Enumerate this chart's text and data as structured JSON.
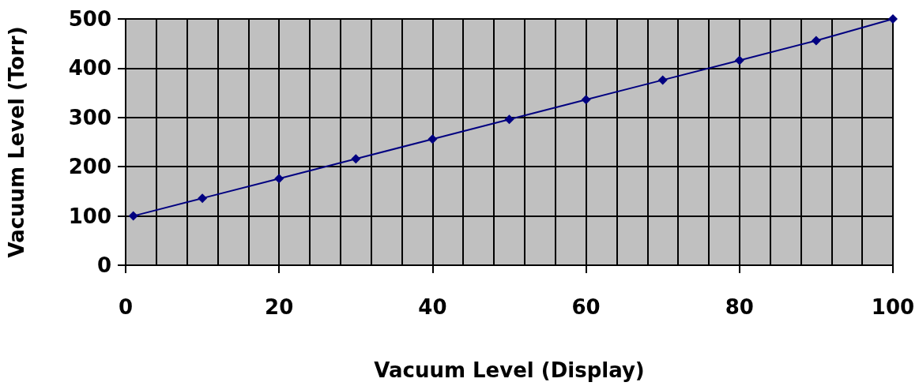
{
  "chart_data": {
    "type": "line",
    "xlabel": "Vacuum Level (Display)",
    "ylabel": "Vacuum Level (Torr)",
    "x": [
      1,
      10,
      20,
      30,
      40,
      50,
      60,
      70,
      80,
      90,
      100
    ],
    "series": [
      {
        "color": "#000080",
        "values": [
          100,
          136,
          176,
          216,
          256,
          296,
          336,
          376,
          416,
          456,
          500
        ]
      }
    ],
    "xlim": [
      0,
      100
    ],
    "xticks": [
      0,
      {
        "value": 4,
        "label": null
      },
      {
        "value": 8,
        "label": null
      },
      {
        "value": 12,
        "label": null
      },
      {
        "value": 16,
        "label": null
      },
      20,
      {
        "value": 24,
        "label": null
      },
      {
        "value": 28,
        "label": null
      },
      {
        "value": 32,
        "label": null
      },
      {
        "value": 36,
        "label": null
      },
      40,
      {
        "value": 44,
        "label": null
      },
      {
        "value": 48,
        "label": null
      },
      {
        "value": 52,
        "label": null
      },
      {
        "value": 56,
        "label": null
      },
      60,
      {
        "value": 64,
        "label": null
      },
      {
        "value": 68,
        "label": null
      },
      {
        "value": 72,
        "label": null
      },
      {
        "value": 76,
        "label": null
      },
      80,
      {
        "value": 84,
        "label": null
      },
      {
        "value": 88,
        "label": null
      },
      {
        "value": 92,
        "label": null
      },
      {
        "value": 96,
        "label": null
      },
      100
    ],
    "ylim": [
      0,
      500
    ],
    "yticks": [
      0,
      100,
      200,
      300,
      400,
      500
    ],
    "grid": true,
    "marker": "diamond",
    "line_style": "solid"
  }
}
